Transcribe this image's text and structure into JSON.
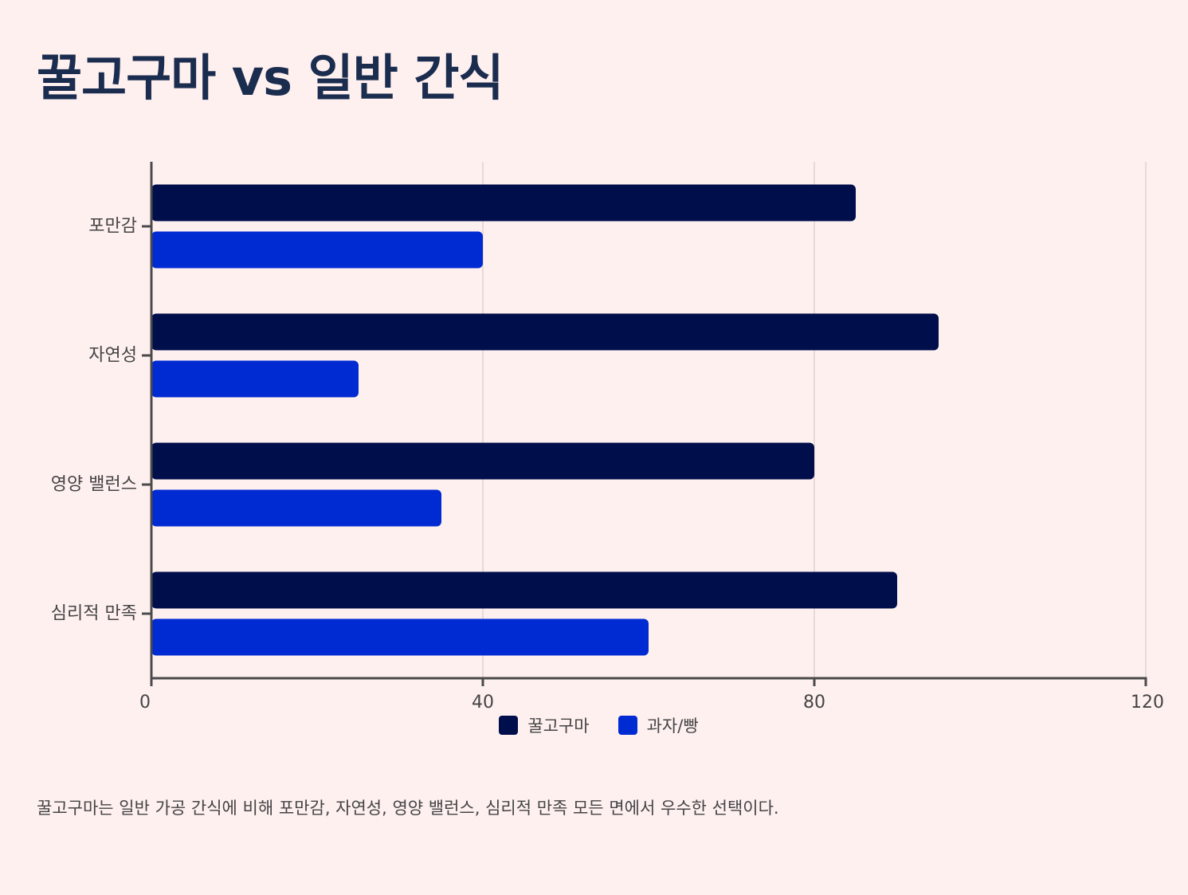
{
  "title": "꿀고구마 vs 일반 간식",
  "caption": "꿀고구마는 일반 가공 간식에 비해 포만감, 자연성, 영양 밸런스, 심리적 만족 모든 면에서 우수한 선택이다.",
  "chart_data": {
    "type": "bar",
    "orientation": "horizontal",
    "categories": [
      "포만감",
      "자연성",
      "영양 밸런스",
      "심리적 만족"
    ],
    "series": [
      {
        "name": "꿀고구마",
        "color": "#000f4b",
        "values": [
          85,
          95,
          80,
          90
        ]
      },
      {
        "name": "과자/빵",
        "color": "#002bd3",
        "values": [
          40,
          25,
          35,
          60
        ]
      }
    ],
    "xlim": [
      0,
      120
    ],
    "xticks": [
      0,
      40,
      80,
      120
    ],
    "grid": true,
    "legend_position": "bottom"
  }
}
